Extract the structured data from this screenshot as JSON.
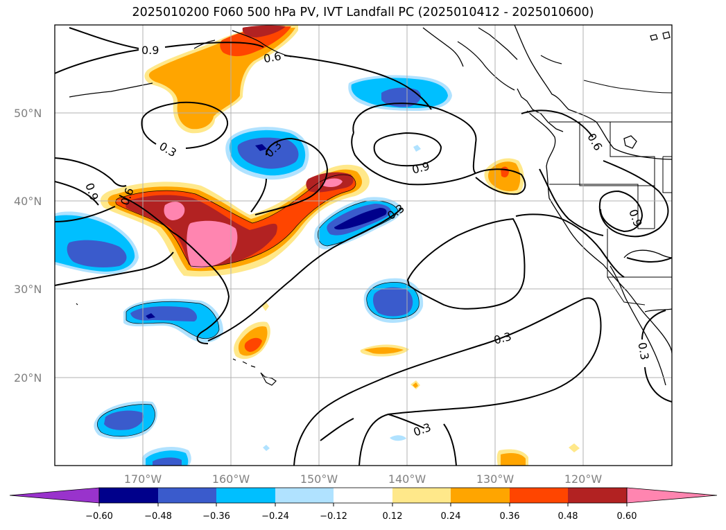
{
  "title": "2025010200 F060 500 hPa PV, IVT Landfall PC (2025010412 - 2025010600)",
  "map": {
    "projection": "PlateCarree",
    "lon_range": [
      -177,
      -107
    ],
    "lat_range": [
      10,
      60
    ],
    "gridlines": true,
    "lat_ticks": [
      "50°N",
      "40°N",
      "30°N",
      "20°N"
    ],
    "lon_ticks": [
      "170°W",
      "160°W",
      "150°W",
      "140°W",
      "130°W",
      "120°W"
    ]
  },
  "contour_labels": [
    "0.9",
    "0.6",
    "0.3",
    "0.9",
    "0.6",
    "0.3",
    "0.9",
    "0.6",
    "0.3",
    "0.9",
    "0.3",
    "0.3",
    "0.3"
  ],
  "colorbar": {
    "ticks": [
      "−0.60",
      "−0.48",
      "−0.36",
      "−0.24",
      "−0.12",
      "0.12",
      "0.24",
      "0.36",
      "0.48",
      "0.60"
    ],
    "colors": {
      "under": "#9933cc",
      "n060": "#00008b",
      "n048": "#3a5bcc",
      "n036": "#00bfff",
      "n024": "#b0e2ff",
      "zero": "#ffffff",
      "p012": "#ffe88a",
      "p024": "#ffa500",
      "p036": "#ff4500",
      "p048": "#b22222",
      "over": "#ff85b0"
    }
  }
}
